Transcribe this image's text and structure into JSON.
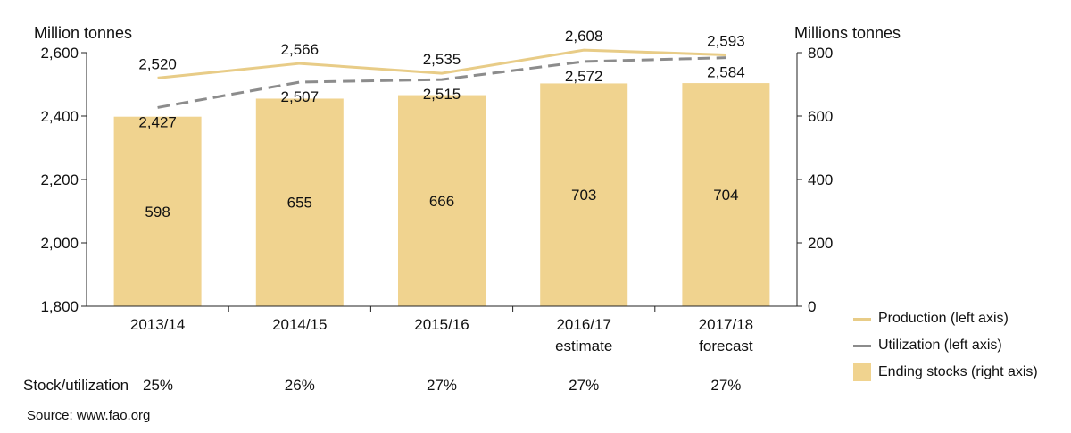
{
  "chart_data": {
    "type": "bar+line",
    "left_axis_title": "Million tonnes",
    "right_axis_title": "Millions tonnes",
    "categories": [
      "2013/14",
      "2014/15",
      "2015/16",
      "2016/17",
      "2017/18"
    ],
    "category_sublabels": [
      "",
      "",
      "",
      "estimate",
      "forecast"
    ],
    "left_axis": {
      "min": 1800,
      "max": 2600,
      "ticks": [
        "1,800",
        "2,000",
        "2,200",
        "2,400",
        "2,600"
      ]
    },
    "right_axis": {
      "min": 0,
      "max": 800,
      "ticks": [
        "0",
        "200",
        "400",
        "600",
        "800"
      ]
    },
    "series": [
      {
        "name": "Production (left axis)",
        "type": "line",
        "axis": "left",
        "values": [
          2520,
          2566,
          2535,
          2608,
          2593
        ],
        "labels": [
          "2,520",
          "2,566",
          "2,535",
          "2,608",
          "2,593"
        ],
        "color": "#E8CC87",
        "dash": false
      },
      {
        "name": "Utilization (left axis)",
        "type": "line",
        "axis": "left",
        "values": [
          2427,
          2507,
          2515,
          2572,
          2584
        ],
        "labels": [
          "2,427",
          "2,507",
          "2,515",
          "2,572",
          "2,584"
        ],
        "color": "#8C8C8C",
        "dash": true
      },
      {
        "name": "Ending stocks (right axis)",
        "type": "bar",
        "axis": "right",
        "values": [
          598,
          655,
          666,
          703,
          704
        ],
        "labels": [
          "598",
          "655",
          "666",
          "703",
          "704"
        ],
        "color": "#F0D38F"
      }
    ],
    "stock_utilization": {
      "label": "Stock/utilization",
      "values": [
        "25%",
        "26%",
        "27%",
        "27%",
        "27%"
      ]
    },
    "legend_position": "bottom-right",
    "grid": false
  },
  "source": "Source: www.fao.org"
}
